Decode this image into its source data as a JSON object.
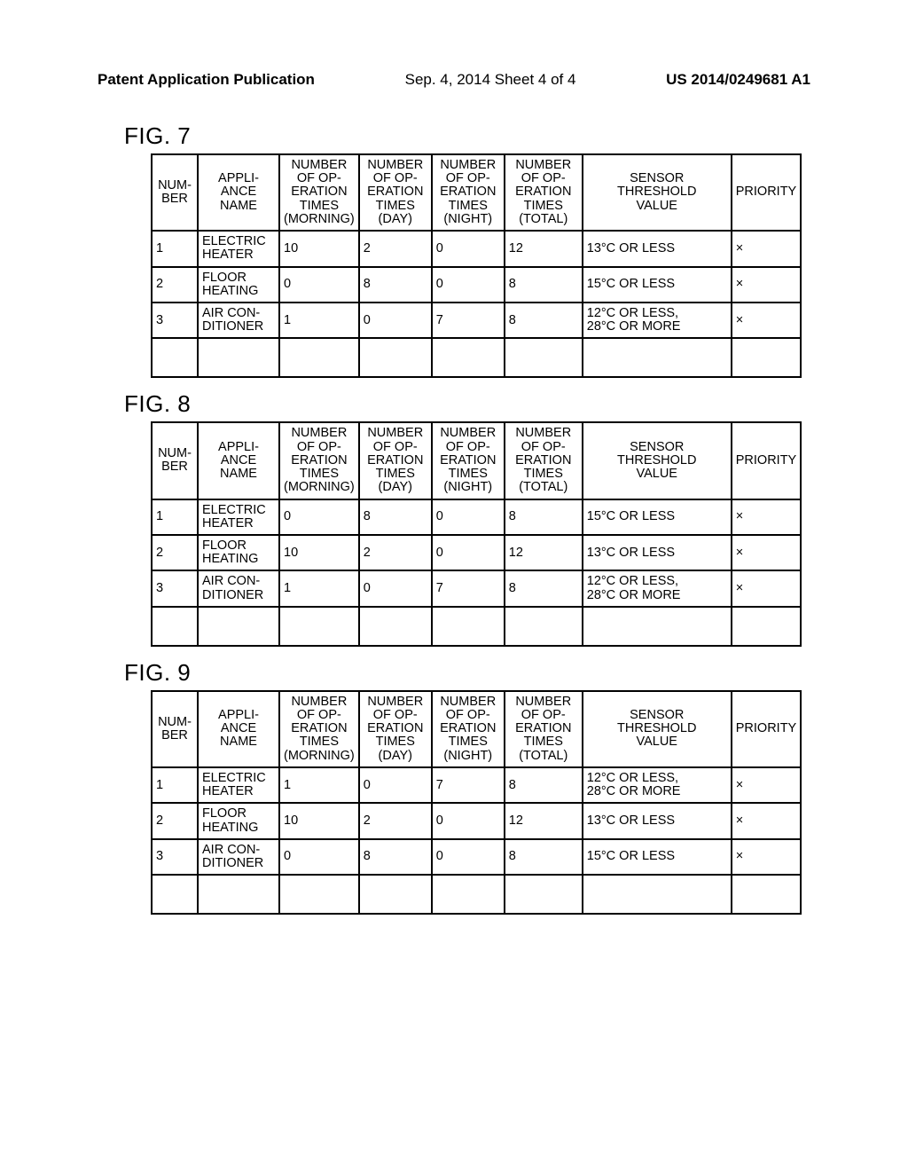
{
  "header": {
    "left": "Patent Application Publication",
    "center": "Sep. 4, 2014  Sheet 4 of 4",
    "right": "US 2014/0249681 A1"
  },
  "column_headers": {
    "num": "NUM-\nBER",
    "name": "APPLI-\nANCE\nNAME",
    "morning": "NUMBER\nOF OP-\nERATION\nTIMES\n(MORNING)",
    "day": "NUMBER\nOF OP-\nERATION\nTIMES\n(DAY)",
    "night": "NUMBER\nOF OP-\nERATION\nTIMES\n(NIGHT)",
    "total": "NUMBER\nOF OP-\nERATION\nTIMES\n(TOTAL)",
    "sensor": "SENSOR\nTHRESHOLD\nVALUE",
    "priority": "PRIORITY"
  },
  "figures": [
    {
      "label": "FIG. 7",
      "rows": [
        {
          "num": "1",
          "name": "ELECTRIC\nHEATER",
          "morning": "10",
          "day": "2",
          "night": "0",
          "total": "12",
          "sensor": "13°C OR LESS",
          "priority": "×"
        },
        {
          "num": "2",
          "name": "FLOOR\nHEATING",
          "morning": "0",
          "day": "8",
          "night": "0",
          "total": "8",
          "sensor": "15°C OR LESS",
          "priority": "×"
        },
        {
          "num": "3",
          "name": "AIR CON-\nDITIONER",
          "morning": "1",
          "day": "0",
          "night": "7",
          "total": "8",
          "sensor": "12°C OR LESS,\n28°C OR MORE",
          "priority": "×"
        }
      ]
    },
    {
      "label": "FIG. 8",
      "rows": [
        {
          "num": "1",
          "name": "ELECTRIC\nHEATER",
          "morning": "0",
          "day": "8",
          "night": "0",
          "total": "8",
          "sensor": "15°C OR LESS",
          "priority": "×"
        },
        {
          "num": "2",
          "name": "FLOOR\nHEATING",
          "morning": "10",
          "day": "2",
          "night": "0",
          "total": "12",
          "sensor": "13°C OR LESS",
          "priority": "×"
        },
        {
          "num": "3",
          "name": "AIR CON-\nDITIONER",
          "morning": "1",
          "day": "0",
          "night": "7",
          "total": "8",
          "sensor": "12°C OR LESS,\n28°C OR MORE",
          "priority": "×"
        }
      ]
    },
    {
      "label": "FIG. 9",
      "rows": [
        {
          "num": "1",
          "name": "ELECTRIC\nHEATER",
          "morning": "1",
          "day": "0",
          "night": "7",
          "total": "8",
          "sensor": "12°C OR LESS,\n28°C OR MORE",
          "priority": "×"
        },
        {
          "num": "2",
          "name": "FLOOR\nHEATING",
          "morning": "10",
          "day": "2",
          "night": "0",
          "total": "12",
          "sensor": "13°C OR LESS",
          "priority": "×"
        },
        {
          "num": "3",
          "name": "AIR CON-\nDITIONER",
          "morning": "0",
          "day": "8",
          "night": "0",
          "total": "8",
          "sensor": "15°C OR LESS",
          "priority": "×"
        }
      ]
    }
  ]
}
